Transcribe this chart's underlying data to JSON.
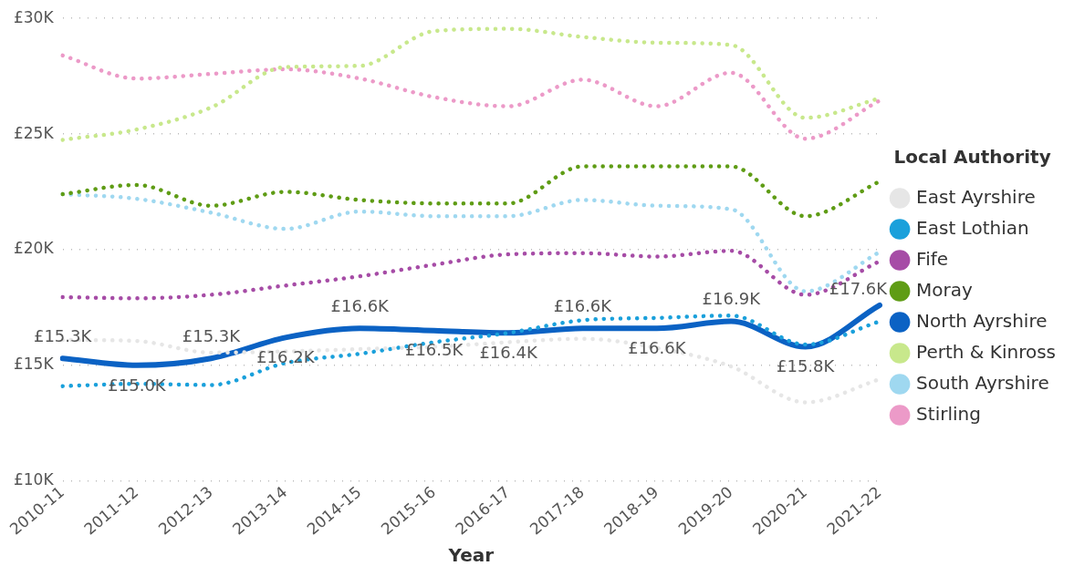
{
  "chart_data": {
    "type": "line",
    "xlabel": "Year",
    "legend_title": "Local Authority",
    "legend": "right",
    "grid": "y",
    "marker": "none",
    "categories": [
      "2010-11",
      "2011-12",
      "2012-13",
      "2013-14",
      "2014-15",
      "2015-16",
      "2016-17",
      "2017-18",
      "2018-19",
      "2019-20",
      "2020-21",
      "2021-22"
    ],
    "ylim": [
      10000,
      30000
    ],
    "yticks": [
      {
        "value": 10000,
        "label": "£10K"
      },
      {
        "value": 15000,
        "label": "£15K"
      },
      {
        "value": 20000,
        "label": "£20K"
      },
      {
        "value": 25000,
        "label": "£25K"
      },
      {
        "value": 30000,
        "label": "£30K"
      }
    ],
    "series": [
      {
        "name": "East Ayrshire",
        "color": "#e6e6e6",
        "line_style": "dotted",
        "values": [
          16100,
          16050,
          15550,
          15600,
          15700,
          15800,
          16000,
          16150,
          15750,
          14950,
          13400,
          14400
        ]
      },
      {
        "name": "East Lothian",
        "color": "#1aa0db",
        "line_style": "dotted",
        "values": [
          14100,
          14200,
          14150,
          15100,
          15500,
          16000,
          16400,
          16950,
          17050,
          17150,
          15900,
          16900
        ]
      },
      {
        "name": "Fife",
        "color": "#a64ca6",
        "line_style": "dotted",
        "values": [
          17950,
          17900,
          18050,
          18450,
          18850,
          19350,
          19800,
          19850,
          19700,
          19950,
          18050,
          19500
        ]
      },
      {
        "name": "Moray",
        "color": "#5f9c15",
        "line_style": "dotted",
        "values": [
          22400,
          22800,
          21900,
          22500,
          22150,
          22000,
          22000,
          23600,
          23600,
          23600,
          21450,
          22950
        ]
      },
      {
        "name": "North Ayrshire",
        "color": "#0b62c4",
        "line_style": "solid",
        "values": [
          15300,
          15000,
          15300,
          16200,
          16600,
          16500,
          16400,
          16600,
          16600,
          16900,
          15800,
          17600
        ],
        "value_labels": [
          "£15.3K",
          "£15.0K",
          "£15.3K",
          "£16.2K",
          "£16.6K",
          "£16.5K",
          "£16.4K",
          "£16.6K",
          "£16.6K",
          "£16.9K",
          "£15.8K",
          "£17.6K"
        ]
      },
      {
        "name": "Perth & Kinross",
        "color": "#c8e88c",
        "line_style": "dotted",
        "values": [
          24750,
          25200,
          26150,
          27900,
          27950,
          29450,
          29550,
          29200,
          28950,
          28850,
          25700,
          26550
        ]
      },
      {
        "name": "South Ayrshire",
        "color": "#9fd8f0",
        "line_style": "dotted",
        "values": [
          22400,
          22200,
          21600,
          20900,
          21650,
          21450,
          21450,
          22150,
          21900,
          21750,
          18200,
          19900
        ]
      },
      {
        "name": "Stirling",
        "color": "#ec9ac8",
        "line_style": "dotted",
        "values": [
          28400,
          27400,
          27600,
          27800,
          27400,
          26600,
          26200,
          27350,
          26200,
          27650,
          24800,
          26450
        ]
      }
    ]
  }
}
